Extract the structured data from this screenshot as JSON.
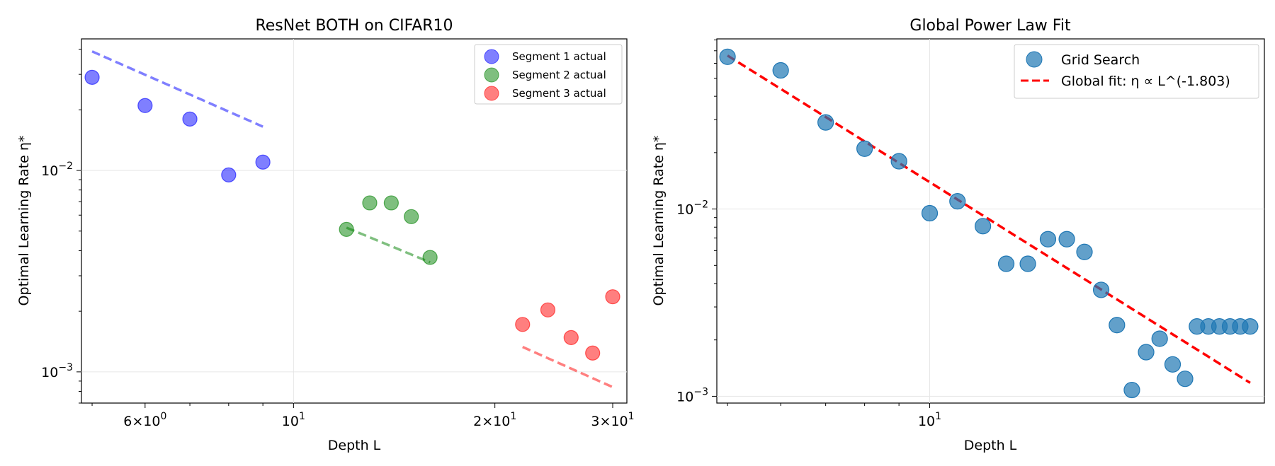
{
  "chart_data": [
    {
      "type": "scatter",
      "title": "ResNet BOTH on CIFAR10",
      "xlabel": "Depth L",
      "ylabel": "Optimal Learning Rate η*",
      "xscale": "log",
      "yscale": "log",
      "xlim": [
        4.82,
        31.5
      ],
      "ylim": [
        0.0007,
        0.045
      ],
      "xticks": [
        {
          "value": 6,
          "base": "6",
          "times": "×",
          "exp": "10",
          "pow": "0"
        },
        {
          "value": 10,
          "base": "",
          "times": "",
          "exp": "10",
          "pow": "1"
        },
        {
          "value": 20,
          "base": "2",
          "times": "×",
          "exp": "10",
          "pow": "1"
        },
        {
          "value": 30,
          "base": "3",
          "times": "×",
          "exp": "10",
          "pow": "1"
        }
      ],
      "yticks": [
        {
          "value": 0.01,
          "exp": "10",
          "pow": "−2"
        },
        {
          "value": 0.001,
          "exp": "10",
          "pow": "−3"
        }
      ],
      "legend_position": "top-right",
      "series": [
        {
          "name": "Segment 1 actual",
          "color": "#0000ff",
          "x": [
            5,
            6,
            7,
            8,
            9
          ],
          "y": [
            0.029,
            0.021,
            0.018,
            0.0095,
            0.011
          ],
          "fit": {
            "x": [
              5,
              9
            ],
            "y": [
              0.039,
              0.0165
            ]
          }
        },
        {
          "name": "Segment 2 actual",
          "color": "#008000",
          "x": [
            12,
            13,
            14,
            15,
            16
          ],
          "y": [
            0.0051,
            0.0069,
            0.0069,
            0.0059,
            0.0037
          ],
          "fit": {
            "x": [
              12,
              16
            ],
            "y": [
              0.0052,
              0.0035
            ]
          }
        },
        {
          "name": "Segment 3 actual",
          "color": "#ff0000",
          "x": [
            22,
            24,
            26,
            28,
            30
          ],
          "y": [
            0.00172,
            0.00203,
            0.00148,
            0.00124,
            0.00236
          ],
          "fit": {
            "x": [
              22,
              30
            ],
            "y": [
              0.00133,
              0.00084
            ]
          }
        }
      ]
    },
    {
      "type": "scatter",
      "title": "Global Power Law Fit",
      "xlabel": "Depth L",
      "ylabel": "Optimal Learning Rate η*",
      "xscale": "log",
      "yscale": "log",
      "xlim": [
        4.82,
        31.5
      ],
      "ylim": [
        0.00092,
        0.081
      ],
      "xticks": [
        {
          "value": 10,
          "base": "",
          "times": "",
          "exp": "10",
          "pow": "1"
        }
      ],
      "yticks": [
        {
          "value": 0.01,
          "exp": "10",
          "pow": "−2"
        },
        {
          "value": 0.001,
          "exp": "10",
          "pow": "−3"
        }
      ],
      "legend_position": "top-right",
      "series": [
        {
          "name": "Grid Search",
          "color": "#1f77b4",
          "x": [
            5,
            6,
            7,
            8,
            9,
            10,
            11,
            12,
            13,
            14,
            15,
            16,
            17,
            18,
            19,
            20,
            21,
            22,
            23,
            24,
            25,
            26,
            27,
            28,
            29,
            30
          ],
          "y": [
            0.065,
            0.055,
            0.029,
            0.021,
            0.018,
            0.0095,
            0.011,
            0.0081,
            0.0051,
            0.0051,
            0.0069,
            0.0069,
            0.0059,
            0.0037,
            0.0024,
            0.00108,
            0.00172,
            0.00203,
            0.00148,
            0.00124,
            0.00236,
            0.00236,
            0.00236,
            0.00236,
            0.00236,
            0.00236
          ]
        }
      ],
      "fit": {
        "name": "Global fit: η ∝ L^(-1.803)",
        "color": "#ff0000",
        "x": [
          5,
          30
        ],
        "y": [
          0.066,
          0.00118
        ]
      }
    }
  ]
}
